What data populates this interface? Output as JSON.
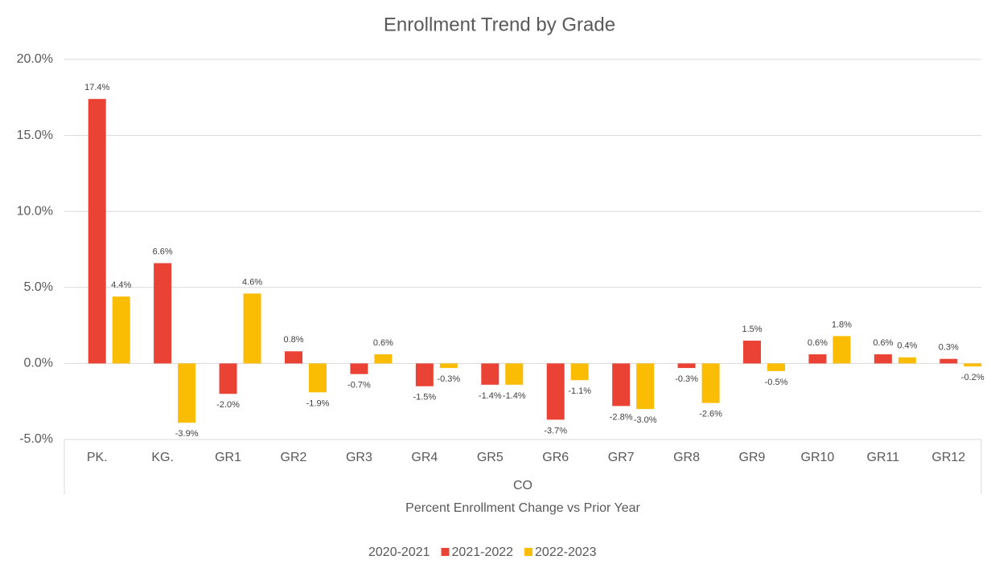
{
  "chart_data": {
    "type": "bar",
    "title": "Enrollment Trend by Grade",
    "categories": [
      "PK.",
      "KG.",
      "GR1",
      "GR2",
      "GR3",
      "GR4",
      "GR5",
      "GR6",
      "GR7",
      "GR8",
      "GR9",
      "GR10",
      "GR11",
      "GR12"
    ],
    "group_label": "CO",
    "x_label": "Percent Enrollment Change vs Prior Year",
    "series": [
      {
        "name": "2020-2021",
        "values": [
          null,
          null,
          null,
          null,
          null,
          null,
          null,
          null,
          null,
          null,
          null,
          null,
          null,
          null
        ]
      },
      {
        "name": "2021-2022",
        "color": "#ea4335",
        "values": [
          17.4,
          6.6,
          -2.0,
          0.8,
          -0.7,
          -1.5,
          -1.4,
          -3.7,
          -2.8,
          -0.3,
          1.5,
          0.6,
          0.6,
          0.3
        ],
        "value_labels": [
          "17.4%",
          "6.6%",
          "-2.0%",
          "0.8%",
          "-0.7%",
          "-1.5%",
          "-1.4%",
          "-3.7%",
          "-2.8%",
          "-0.3%",
          "1.5%",
          "0.6%",
          "0.6%",
          "0.3%"
        ]
      },
      {
        "name": "2022-2023",
        "color": "#fbbc04",
        "values": [
          4.4,
          -3.9,
          4.6,
          -1.9,
          0.6,
          -0.3,
          -1.4,
          -1.1,
          -3.0,
          -2.6,
          -0.5,
          1.8,
          0.4,
          -0.2
        ],
        "value_labels": [
          "4.4%",
          "-3.9%",
          "4.6%",
          "-1.9%",
          "0.6%",
          "-0.3%",
          "-1.4%",
          "-1.1%",
          "-3.0%",
          "-2.6%",
          "-0.5%",
          "1.8%",
          "0.4%",
          "-0.2%"
        ]
      }
    ],
    "ylim": [
      -5,
      20
    ],
    "yticks": [
      {
        "value": -5,
        "label": "-5.0%"
      },
      {
        "value": 0,
        "label": "0.0%"
      },
      {
        "value": 5,
        "label": "5.0%"
      },
      {
        "value": 10,
        "label": "10.0%"
      },
      {
        "value": 15,
        "label": "15.0%"
      },
      {
        "value": 20,
        "label": "20.0%"
      }
    ],
    "grid": true,
    "legend": "bottom"
  }
}
